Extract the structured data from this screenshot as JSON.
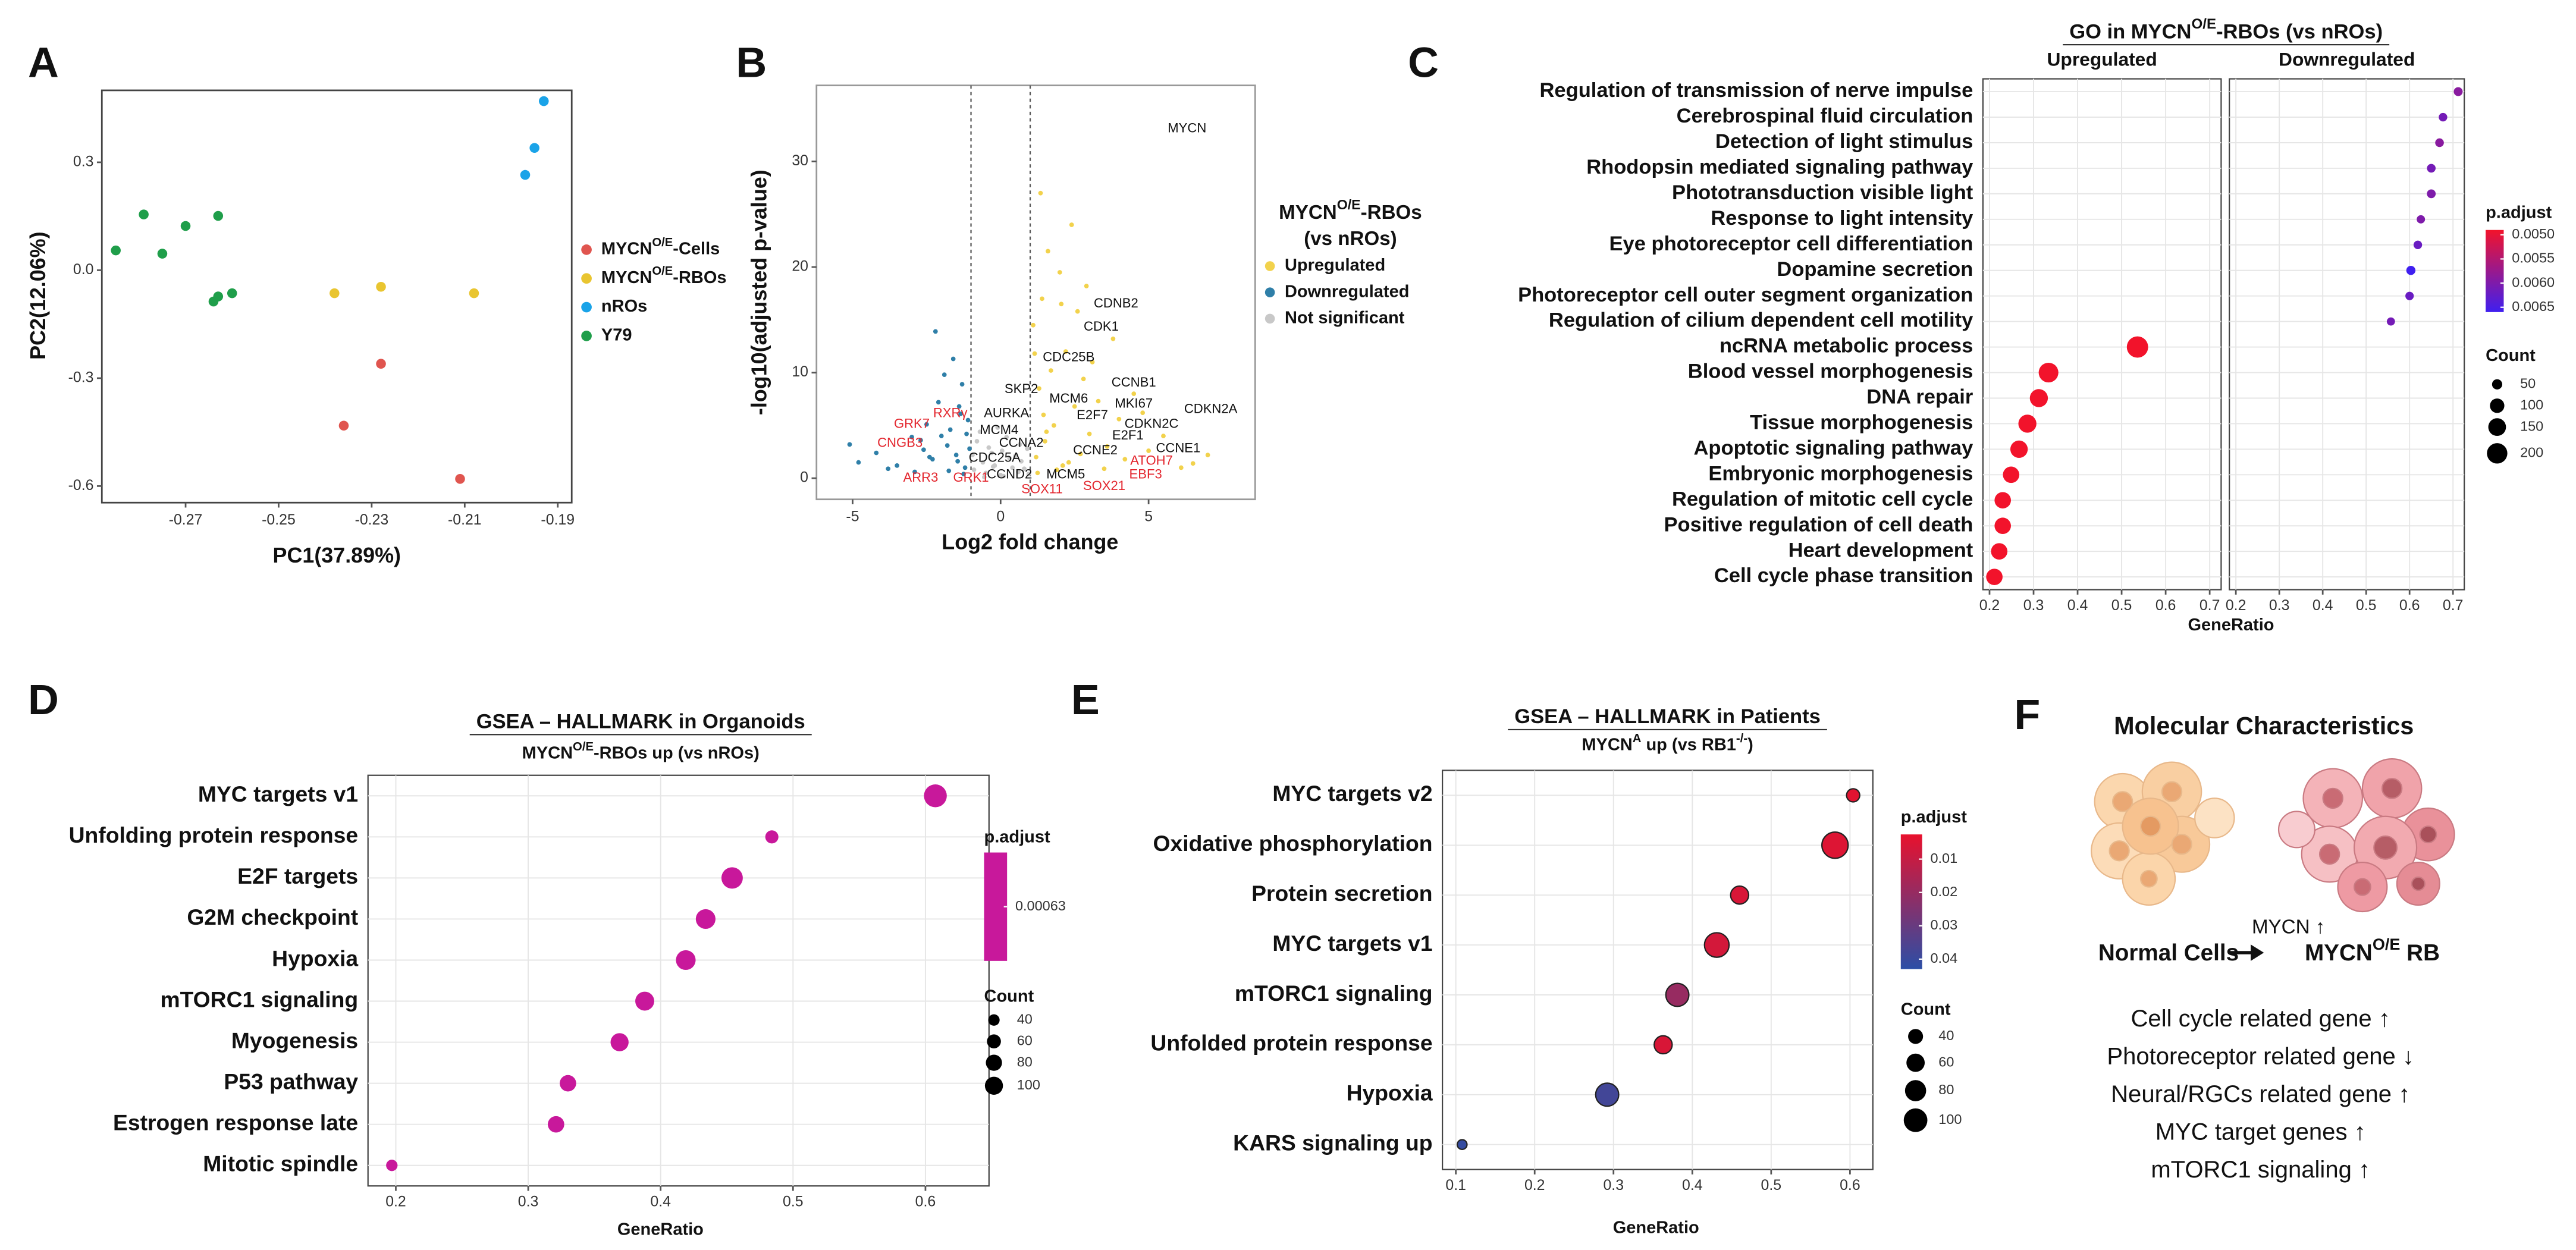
{
  "chart_data": [
    {
      "type": "scatter",
      "panel": "A",
      "xlabel": "PC1(37.89%)",
      "ylabel": "PC2(12.06%)",
      "xlim": [
        -0.288,
        -0.187
      ],
      "ylim": [
        -0.646,
        0.5
      ],
      "xticks": [
        -0.27,
        -0.25,
        -0.23,
        -0.21,
        -0.19
      ],
      "yticks": [
        -0.6,
        -0.3,
        {
          "value": 0,
          "label": "0.0"
        },
        0.3
      ],
      "series": [
        {
          "name": "MYCNO/E-Cells",
          "color": "#e0554f",
          "x": [
            -0.236,
            -0.228,
            -0.211
          ],
          "y": [
            -0.432,
            -0.26,
            -0.58
          ]
        },
        {
          "name": "MYCNO/E-RBOs",
          "color": "#e9c530",
          "x": [
            -0.238,
            -0.228,
            -0.208
          ],
          "y": [
            -0.064,
            -0.046,
            -0.064
          ]
        },
        {
          "name": "nROs",
          "color": "#1aa3e8",
          "x": [
            -0.193,
            -0.195,
            -0.197
          ],
          "y": [
            0.47,
            0.34,
            0.265
          ]
        },
        {
          "name": "Y79",
          "color": "#1f9e4a",
          "x": [
            -0.285,
            -0.279,
            -0.275,
            -0.27,
            -0.263,
            -0.264,
            -0.263,
            -0.26
          ],
          "y": [
            0.055,
            0.155,
            0.046,
            0.123,
            0.151,
            -0.087,
            -0.073,
            -0.064
          ]
        }
      ]
    },
    {
      "type": "scatter",
      "panel": "B",
      "xlabel": "Log2 fold change",
      "ylabel": "-log10(adjusted p-value)",
      "xlim": [
        -6.22,
        8.6
      ],
      "ylim": [
        -2,
        37.2
      ],
      "xticks": [
        -5,
        0,
        5
      ],
      "yticks": [
        0,
        10,
        20,
        30
      ],
      "vlines": [
        -1,
        1
      ],
      "legend_title": [
        "MYCNO/E-RBOs",
        "(vs nROs)"
      ],
      "series": [
        {
          "name": "Upregulated",
          "color": "#f2d24c",
          "x": [
            1.2,
            1.5,
            1.8,
            2.1,
            2.5,
            3.0,
            3.6,
            4.2,
            5.0,
            6.1,
            1.3,
            1.7,
            2.2,
            2.8,
            3.3,
            4.0,
            4.8,
            1.1,
            1.4,
            2.0,
            2.6,
            3.1,
            1.6,
            2.4,
            3.8,
            1.9,
            2.3,
            1.25,
            1.55,
            2.7,
            3.5,
            4.5,
            5.5,
            7.0,
            1.35,
            2.05,
            2.9,
            1.45,
            1.15,
            6.5
          ],
          "y": [
            2.0,
            3.5,
            5.0,
            1.2,
            6.8,
            4.2,
            3.0,
            1.8,
            2.6,
            1.0,
            8.5,
            10.2,
            12.0,
            9.4,
            7.3,
            5.6,
            6.2,
            14.5,
            17.0,
            19.5,
            15.8,
            11.0,
            21.5,
            24.0,
            13.2,
            0.8,
            1.5,
            0.5,
            4.4,
            2.3,
            0.9,
            8.0,
            4.0,
            2.2,
            27.0,
            16.5,
            18.2,
            6.0,
            11.8,
            1.4
          ]
        },
        {
          "name": "Downregulated",
          "color": "#2f7fa8",
          "x": [
            -1.2,
            -1.5,
            -1.8,
            -2.0,
            -2.3,
            -2.6,
            -3.0,
            -3.5,
            -4.2,
            -5.1,
            -1.1,
            -1.4,
            -1.7,
            -2.1,
            -2.5,
            -2.9,
            -1.3,
            -1.6,
            -1.9,
            -2.2,
            -1.05,
            -1.25,
            -1.45,
            -3.8,
            -4.8,
            -2.7,
            -1.15,
            -1.35,
            -2.4,
            -1.75
          ],
          "y": [
            1.0,
            2.2,
            3.1,
            4.0,
            1.8,
            2.7,
            3.9,
            1.2,
            2.4,
            3.2,
            5.5,
            6.8,
            4.6,
            7.2,
            5.1,
            0.6,
            8.9,
            11.3,
            9.8,
            13.9,
            2.8,
            0.4,
            1.6,
            0.9,
            1.5,
            3.6,
            4.2,
            6.1,
            2.0,
            0.7
          ]
        },
        {
          "name": "Not significant",
          "color": "#c8c8c8",
          "x": [
            -0.9,
            -0.6,
            -0.3,
            0.0,
            0.3,
            0.6,
            0.9,
            -0.8,
            -0.5,
            -0.2,
            0.2,
            0.5,
            0.8,
            -0.7,
            -0.4,
            0.1,
            0.4,
            0.7,
            -0.95,
            0.95,
            -0.1,
            0.05,
            -0.55,
            0.65,
            -0.25
          ],
          "y": [
            0.8,
            1.5,
            2.4,
            0.3,
            1.9,
            0.6,
            2.8,
            3.5,
            0.5,
            1.2,
            3.9,
            2.1,
            0.9,
            4.4,
            2.9,
            0.2,
            1.0,
            1.6,
            2.2,
            0.4,
            4.8,
            2.6,
            0.1,
            3.2,
            1.1
          ]
        }
      ],
      "annotations": [
        {
          "text": "MYCN",
          "x": 6.3,
          "y": 33.1,
          "color": "#111111"
        },
        {
          "text": "CDNB2",
          "x": 3.9,
          "y": 16.5,
          "color": "#111111"
        },
        {
          "text": "CDK1",
          "x": 3.4,
          "y": 14.3,
          "color": "#111111"
        },
        {
          "text": "CDC25B",
          "x": 2.3,
          "y": 11.4,
          "color": "#111111"
        },
        {
          "text": "CCNB1",
          "x": 4.5,
          "y": 9.0,
          "color": "#111111"
        },
        {
          "text": "SKP2",
          "x": 0.7,
          "y": 8.4,
          "color": "#111111"
        },
        {
          "text": "MCM6",
          "x": 2.3,
          "y": 7.5,
          "color": "#111111"
        },
        {
          "text": "MKI67",
          "x": 4.5,
          "y": 7.0,
          "color": "#111111"
        },
        {
          "text": "CDKN2A",
          "x": 7.1,
          "y": 6.5,
          "color": "#111111"
        },
        {
          "text": "AURKA",
          "x": 0.2,
          "y": 6.1,
          "color": "#111111"
        },
        {
          "text": "E2F7",
          "x": 3.1,
          "y": 5.9,
          "color": "#111111"
        },
        {
          "text": "CDKN2C",
          "x": 5.1,
          "y": 5.1,
          "color": "#111111"
        },
        {
          "text": "MCM4",
          "x": -0.05,
          "y": 4.5,
          "color": "#111111"
        },
        {
          "text": "E2F1",
          "x": 4.3,
          "y": 4.0,
          "color": "#111111"
        },
        {
          "text": "CCNA2",
          "x": 0.7,
          "y": 3.3,
          "color": "#111111"
        },
        {
          "text": "CCNE2",
          "x": 3.2,
          "y": 2.6,
          "color": "#111111"
        },
        {
          "text": "CCNE1",
          "x": 6.0,
          "y": 2.8,
          "color": "#111111"
        },
        {
          "text": "CDC25A",
          "x": -0.2,
          "y": 1.9,
          "color": "#111111"
        },
        {
          "text": "CCND2",
          "x": 0.3,
          "y": 0.3,
          "color": "#111111"
        },
        {
          "text": "MCM5",
          "x": 2.2,
          "y": 0.3,
          "color": "#111111"
        },
        {
          "text": "GRK7",
          "x": -3.0,
          "y": 5.1,
          "color": "#e3262e"
        },
        {
          "text": "RXRγ",
          "x": -1.7,
          "y": 6.1,
          "color": "#e3262e"
        },
        {
          "text": "CNGB3",
          "x": -3.4,
          "y": 3.3,
          "color": "#e3262e"
        },
        {
          "text": "ARR3",
          "x": -2.7,
          "y": 0.0,
          "color": "#e3262e"
        },
        {
          "text": "GRK1",
          "x": -1.0,
          "y": 0.0,
          "color": "#e3262e"
        },
        {
          "text": "ATOH7",
          "x": 5.1,
          "y": 1.6,
          "color": "#e3262e"
        },
        {
          "text": "SOX11",
          "x": 1.4,
          "y": -1.1,
          "color": "#e3262e"
        },
        {
          "text": "SOX21",
          "x": 3.5,
          "y": -0.8,
          "color": "#e3262e"
        },
        {
          "text": "EBF3",
          "x": 4.9,
          "y": 0.3,
          "color": "#e3262e"
        }
      ]
    },
    {
      "type": "dot",
      "panel": "C",
      "title": "GO in MYCNO/E-RBOs (vs nROs)",
      "xlabel": "GeneRatio",
      "grid": true,
      "xlim": [
        0.185,
        0.726
      ],
      "xticks": [
        0.2,
        0.3,
        0.4,
        0.5,
        0.6,
        0.7
      ],
      "categories": [
        "Regulation of transmission of nerve impulse",
        "Cerebrospinal fluid circulation",
        "Detection of light stimulus",
        "Rhodopsin mediated signaling pathway",
        "Phototransduction visible light",
        "Response to light intensity",
        "Eye photoreceptor cell differentiation",
        "Dopamine secretion",
        "Photoreceptor cell outer segment organization",
        "Regulation of cilium dependent cell motility",
        "ncRNA metabolic process",
        "Blood vessel morphogenesis",
        "DNA repair",
        "Tissue morphogenesis",
        "Apoptotic signaling pathway",
        "Embryonic morphogenesis",
        "Regulation of mitotic cell cycle",
        "Positive regulation of cell death",
        "Heart development",
        "Cell cycle phase transition"
      ],
      "series": [
        {
          "name": "Upregulated",
          "values": [
            null,
            null,
            null,
            null,
            null,
            null,
            null,
            null,
            null,
            null,
            0.536,
            0.334,
            0.312,
            0.286,
            0.267,
            0.249,
            0.23,
            0.23,
            0.222,
            0.211
          ],
          "count": [
            null,
            null,
            null,
            null,
            null,
            null,
            null,
            null,
            null,
            null,
            218,
            186,
            156,
            156,
            145,
            129,
            129,
            129,
            129,
            129
          ],
          "p_adjust": [
            null,
            null,
            null,
            null,
            null,
            null,
            null,
            null,
            null,
            null,
            0.0049,
            0.0049,
            0.0049,
            0.0049,
            0.0049,
            0.0049,
            0.0049,
            0.0049,
            0.0049,
            0.0049
          ]
        },
        {
          "name": "Downregulated",
          "values": [
            0.712,
            0.677,
            0.669,
            0.65,
            0.65,
            0.626,
            0.619,
            0.603,
            0.6,
            0.557,
            null,
            null,
            null,
            null,
            null,
            null,
            null,
            null,
            null,
            null
          ],
          "count": [
            38,
            35,
            36,
            36,
            37,
            33,
            35,
            40,
            34,
            32,
            null,
            null,
            null,
            null,
            null,
            null,
            null,
            null,
            null,
            null
          ],
          "p_adjust": [
            0.0059,
            0.0061,
            0.0059,
            0.0061,
            0.006,
            0.006,
            0.0062,
            0.0066,
            0.0062,
            0.0061,
            null,
            null,
            null,
            null,
            null,
            null,
            null,
            null,
            null,
            null
          ]
        }
      ],
      "color_title": "p.adjust",
      "colors": [
        "#f2132b",
        "#3f1ff0"
      ],
      "color_lim": [
        0.0049,
        0.0066
      ],
      "color_ticks": [
        {
          "value": 0.005,
          "label": "0.0050"
        },
        0.0055,
        {
          "value": 0.006,
          "label": "0.0060"
        },
        0.0065
      ],
      "size_title": "Count",
      "size_ticks": [
        50,
        100,
        150,
        200
      ]
    },
    {
      "type": "dot",
      "panel": "D",
      "title": "GSEA – HALLMARK in Organoids",
      "subtitle": "MYCNO/E-RBOs up (vs nROs)",
      "xlabel": "GeneRatio",
      "grid": true,
      "xlim": [
        0.179,
        0.648
      ],
      "xticks": [
        0.2,
        0.3,
        0.4,
        0.5,
        0.6
      ],
      "categories": [
        "MYC targets v1",
        "Unfolding protein response",
        "E2F targets",
        "G2M checkpoint",
        "Hypoxia",
        "mTORC1 signaling",
        "Myogenesis",
        "P53 pathway",
        "Estrogen response late",
        "Mitotic spindle"
      ],
      "values": [
        0.6075,
        0.484,
        0.454,
        0.434,
        0.419,
        0.388,
        0.369,
        0.33,
        0.321,
        0.197
      ],
      "count": [
        160,
        53,
        140,
        119,
        119,
        110,
        100,
        83,
        83,
        40
      ],
      "p_adjust": [
        0.00063,
        0.00063,
        0.00063,
        0.00063,
        0.00063,
        0.00063,
        0.00063,
        0.00063,
        0.00063,
        0.00063
      ],
      "color_title": "p.adjust",
      "colors": [
        "#c8189b"
      ],
      "color_ticks": [
        0.00063
      ],
      "size_title": "Count",
      "size_ticks": [
        40,
        60,
        80,
        100
      ]
    },
    {
      "type": "dot",
      "panel": "E",
      "title": "GSEA – HALLMARK in Patients",
      "subtitle": "MYCNA up (vs RB1-/-)",
      "xlabel": "GeneRatio",
      "grid": true,
      "xlim": [
        0.083,
        0.629
      ],
      "xticks": [
        0.1,
        0.2,
        0.3,
        0.4,
        0.5,
        0.6
      ],
      "categories": [
        "MYC targets v2",
        "Oxidative phosphorylation",
        "Protein secretion",
        "MYC targets v1",
        "mTORC1 signaling",
        "Unfolded protein response",
        "Hypoxia",
        "KARS signaling up"
      ],
      "values": [
        0.604,
        0.581,
        0.46,
        0.431,
        0.381,
        0.363,
        0.292,
        0.108
      ],
      "count": [
        31,
        123,
        58,
        108,
        95,
        58,
        95,
        17
      ],
      "p_adjust": [
        0.004,
        0.005,
        0.006,
        0.007,
        0.02,
        0.006,
        0.038,
        0.041
      ],
      "edgecolor": "#222222",
      "color_title": "p.adjust",
      "colors": [
        "#e8112d",
        "#2b4ea6"
      ],
      "color_lim": [
        0.0026,
        0.043
      ],
      "color_ticks": [
        0.01,
        0.02,
        0.03,
        0.04
      ],
      "size_title": "Count",
      "size_ticks": [
        40,
        60,
        80,
        100
      ]
    }
  ],
  "panel_f": {
    "panel": "F",
    "title": "Molecular Characteristics",
    "arrow_label": "MYCN ↑",
    "left_label": "Normal Cells",
    "right_label": "MYCNO/E RB",
    "items": [
      "Cell cycle related gene ↑",
      "Photoreceptor related gene ↓",
      "Neural/RGCs related gene ↑",
      "MYC target genes ↑",
      "mTORC1 signaling ↑"
    ]
  }
}
